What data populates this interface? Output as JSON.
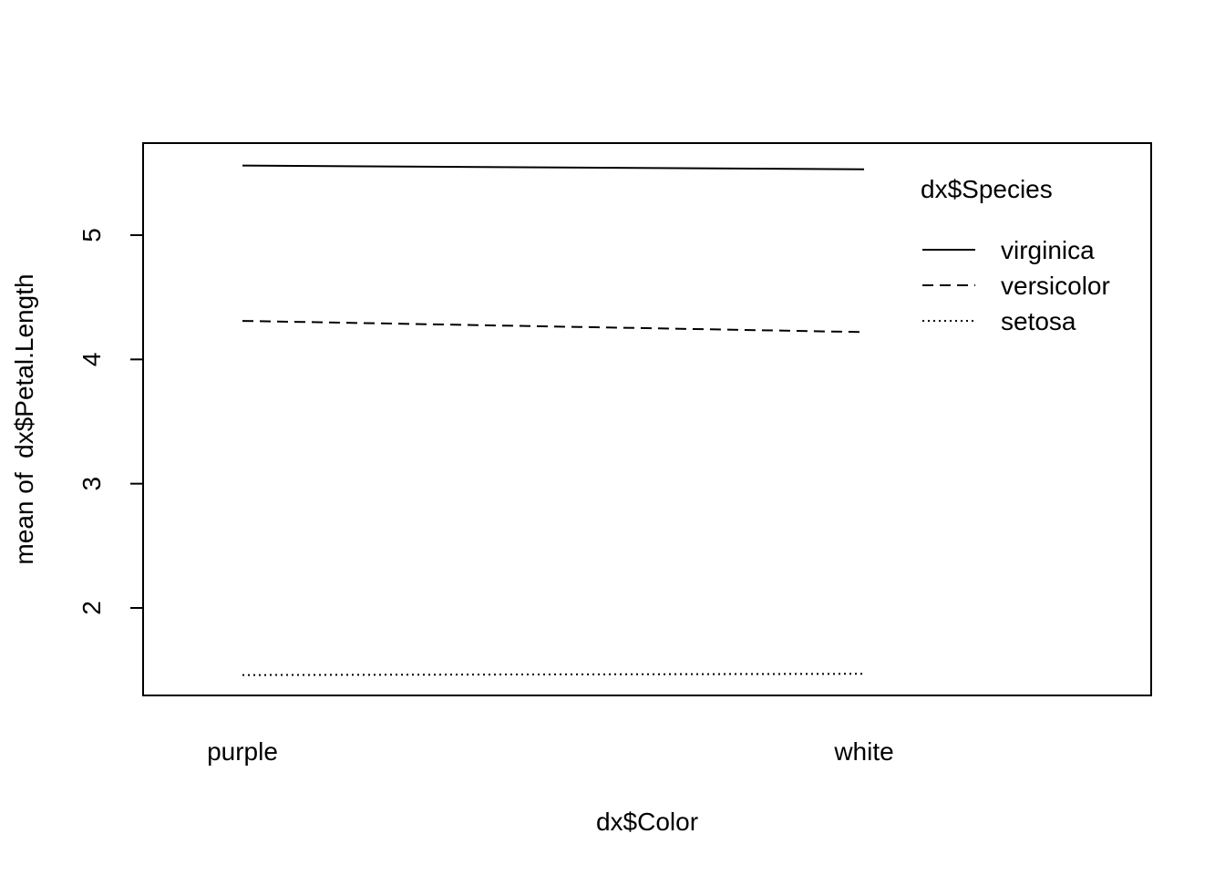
{
  "chart_data": {
    "type": "line",
    "title": "",
    "xlabel": "dx$Color",
    "ylabel": "mean of  dx$Petal.Length",
    "categories": [
      "purple",
      "white"
    ],
    "ylim": [
      1.45,
      5.6
    ],
    "yticks": [
      2,
      3,
      4,
      5
    ],
    "grid": false,
    "legend": {
      "title": "dx$Species",
      "position": "top-right"
    },
    "series": [
      {
        "name": "virginica",
        "values": [
          5.56,
          5.53
        ],
        "style": "solid"
      },
      {
        "name": "versicolor",
        "values": [
          4.31,
          4.22
        ],
        "style": "dashed"
      },
      {
        "name": "setosa",
        "values": [
          1.46,
          1.47
        ],
        "style": "dotted"
      }
    ]
  }
}
